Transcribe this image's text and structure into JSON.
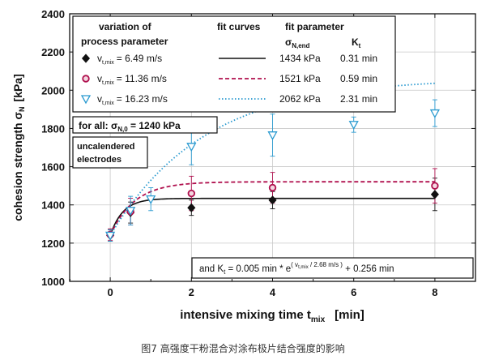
{
  "caption": "图7 高强度干粉混合对涂布极片结合强度的影响",
  "colors": {
    "black": "#111111",
    "magenta": "#b0104e",
    "cyan": "#2a9ad0"
  },
  "chart_data": {
    "type": "scatter",
    "xlabel": {
      "main": "intensive mixing time t",
      "sub": "mix",
      "unit": "[min]"
    },
    "ylabel": {
      "main": "cohesion strength σ",
      "sub": "N",
      "unit": "[kPa]"
    },
    "xlim": [
      -1,
      9
    ],
    "ylim": [
      1000,
      2400
    ],
    "xticks": [
      0,
      2,
      4,
      6,
      8
    ],
    "yticks": [
      1000,
      1200,
      1400,
      1600,
      1800,
      2000,
      2200,
      2400
    ],
    "grid": true,
    "legend": {
      "header_col1_line1": "variation  of",
      "header_col1_line2": "process parameter",
      "header_col2": "fit curves",
      "header_col3": "fit parameter",
      "header_sigma": "σ",
      "header_sigma_sub": "N,end",
      "header_k": "K",
      "header_k_sub": "t"
    },
    "series": [
      {
        "label_v": "v",
        "label_sub": "t,mix",
        "label_val": "=  6.49 m/s",
        "sigma_end": "1434 kPa",
        "kt": "0.31 min",
        "marker": "diamond",
        "line": "solid",
        "sigma_end_num": 1434,
        "sigma0": 1240,
        "kt_num": 0.31,
        "x": [
          0,
          0.5,
          2,
          4,
          8
        ],
        "y": [
          1240,
          1360,
          1385,
          1425,
          1455
        ],
        "err": [
          30,
          55,
          40,
          45,
          85
        ]
      },
      {
        "label_v": "v",
        "label_sub": "t,mix",
        "label_val": "= 11.36 m/s",
        "sigma_end": "1521 kPa",
        "kt": "0.59 min",
        "marker": "circle",
        "line": "dashed",
        "sigma_end_num": 1521,
        "sigma0": 1240,
        "kt_num": 0.59,
        "x": [
          0,
          0.5,
          2,
          4,
          8
        ],
        "y": [
          1245,
          1365,
          1460,
          1490,
          1500
        ],
        "err": [
          30,
          70,
          90,
          80,
          90
        ]
      },
      {
        "label_v": "v",
        "label_sub": "t,mix",
        "label_val": "= 16.23 m/s",
        "sigma_end": "2062 kPa",
        "kt": "2.31 min",
        "marker": "triangle-down",
        "line": "dotted",
        "sigma_end_num": 2062,
        "sigma0": 1240,
        "kt_num": 2.31,
        "x": [
          0,
          0.5,
          1,
          2,
          4,
          6,
          8
        ],
        "y": [
          1240,
          1370,
          1430,
          1705,
          1765,
          1820,
          1880
        ],
        "err": [
          30,
          75,
          60,
          95,
          110,
          40,
          70
        ]
      }
    ],
    "annotations": {
      "for_all_prefix": "for all: σ",
      "for_all_sub": "N,0",
      "for_all_value": " = 1240 kPa",
      "uncal_line1": "uncalendered",
      "uncal_line2": "electrodes",
      "formula_a": "and K",
      "formula_sub_t": "t",
      "formula_b": " = 0.005 min * e",
      "formula_exp": "( v",
      "formula_exp_sub": "t,mix",
      "formula_exp_tail": " / 2.68 m/s )",
      "formula_c": " + 0.256 min"
    }
  }
}
